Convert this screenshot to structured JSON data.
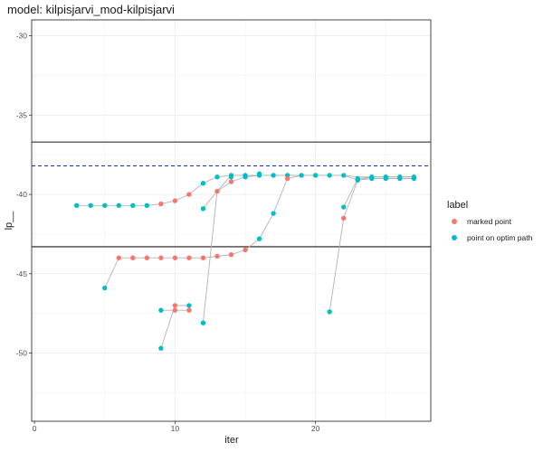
{
  "chart_data": {
    "type": "scatter",
    "title": "model: kilpisjarvi_mod-kilpisjarvi",
    "xlabel": "iter",
    "ylabel": "lp__",
    "xlim": [
      -0.2,
      28.2
    ],
    "ylim": [
      -54.3,
      -29.0
    ],
    "x_ticks": [
      0,
      10,
      20
    ],
    "y_ticks": [
      -30,
      -35,
      -40,
      -45,
      -50
    ],
    "grid": true,
    "legend_position": "right",
    "legend_title": "label",
    "legend": [
      {
        "label": "marked point",
        "color": "#F8766D"
      },
      {
        "label": "point on optim path",
        "color": "#00BFC4"
      }
    ],
    "hlines": [
      {
        "y": -36.7,
        "style": "solid",
        "color": "#1a1a1a"
      },
      {
        "y": -43.3,
        "style": "solid",
        "color": "#1a1a1a"
      },
      {
        "y": -38.2,
        "style": "dashed",
        "color": "#1a2ad6"
      }
    ],
    "paths": [
      [
        [
          3,
          -40.7
        ],
        [
          4,
          -40.7
        ],
        [
          5,
          -40.7
        ],
        [
          6,
          -40.7
        ],
        [
          7,
          -40.7
        ],
        [
          8,
          -40.7
        ],
        [
          9,
          -40.6
        ],
        [
          10,
          -40.4
        ],
        [
          11,
          -40.0
        ],
        [
          12,
          -39.3
        ],
        [
          13,
          -38.9
        ],
        [
          14,
          -38.8
        ],
        [
          15,
          -38.8
        ],
        [
          16,
          -38.8
        ],
        [
          17,
          -38.8
        ],
        [
          18,
          -38.8
        ],
        [
          19,
          -38.8
        ],
        [
          20,
          -38.8
        ],
        [
          21,
          -38.8
        ],
        [
          22,
          -38.8
        ],
        [
          23,
          -39.1
        ],
        [
          24,
          -39.0
        ],
        [
          25,
          -39.0
        ],
        [
          26,
          -39.0
        ],
        [
          27,
          -39.0
        ]
      ],
      [
        [
          5,
          -45.9
        ],
        [
          6,
          -44.0
        ],
        [
          7,
          -44.0
        ],
        [
          8,
          -44.0
        ],
        [
          9,
          -44.0
        ],
        [
          10,
          -44.0
        ],
        [
          11,
          -44.0
        ],
        [
          12,
          -44.0
        ],
        [
          13,
          -43.9
        ],
        [
          14,
          -43.8
        ],
        [
          15,
          -43.5
        ],
        [
          16,
          -42.8
        ],
        [
          17,
          -41.2
        ],
        [
          18,
          -39.0
        ],
        [
          19,
          -38.8
        ],
        [
          20,
          -38.8
        ],
        [
          21,
          -38.8
        ],
        [
          22,
          -38.8
        ],
        [
          23,
          -38.9
        ],
        [
          24,
          -38.9
        ],
        [
          25,
          -38.9
        ],
        [
          26,
          -38.9
        ],
        [
          27,
          -38.9
        ]
      ],
      [
        [
          12,
          -40.9
        ],
        [
          13,
          -39.8
        ],
        [
          14,
          -39.2
        ],
        [
          15,
          -38.9
        ],
        [
          16,
          -38.8
        ],
        [
          17,
          -38.8
        ]
      ],
      [
        [
          12,
          -48.1
        ],
        [
          13,
          -39.8
        ],
        [
          14,
          -38.8
        ],
        [
          15,
          -38.8
        ],
        [
          16,
          -38.8
        ],
        [
          17,
          -38.8
        ]
      ],
      [
        [
          9,
          -47.3
        ],
        [
          10,
          -47.3
        ],
        [
          11,
          -47.3
        ]
      ],
      [
        [
          9,
          -49.7
        ],
        [
          10,
          -47.0
        ],
        [
          11,
          -47.0
        ]
      ],
      [
        [
          21,
          -47.4
        ],
        [
          22,
          -41.5
        ],
        [
          23,
          -39.1
        ],
        [
          24,
          -38.9
        ],
        [
          25,
          -38.9
        ],
        [
          26,
          -38.9
        ],
        [
          27,
          -38.9
        ]
      ],
      [
        [
          22,
          -40.8
        ],
        [
          23,
          -39.0
        ],
        [
          24,
          -38.9
        ],
        [
          25,
          -38.9
        ],
        [
          26,
          -38.9
        ],
        [
          27,
          -38.9
        ]
      ]
    ],
    "marked_points": [
      [
        6,
        -44.0
      ],
      [
        9,
        -40.6
      ],
      [
        10,
        -40.4
      ],
      [
        11,
        -40.0
      ],
      [
        13,
        -39.8
      ],
      [
        14,
        -39.2
      ],
      [
        18,
        -39.0
      ],
      [
        22,
        -41.5
      ],
      [
        10,
        -47.0
      ],
      [
        10,
        -47.3
      ],
      [
        11,
        -47.3
      ],
      [
        7,
        -44.0
      ],
      [
        8,
        -44.0
      ],
      [
        9,
        -44.0
      ],
      [
        10,
        -44.0
      ],
      [
        11,
        -44.0
      ],
      [
        12,
        -44.0
      ],
      [
        13,
        -43.9
      ],
      [
        14,
        -43.8
      ],
      [
        15,
        -43.5
      ]
    ],
    "optim_points": [
      [
        3,
        -40.7
      ],
      [
        4,
        -40.7
      ],
      [
        5,
        -40.7
      ],
      [
        6,
        -40.7
      ],
      [
        7,
        -40.7
      ],
      [
        8,
        -40.7
      ],
      [
        12,
        -39.3
      ],
      [
        13,
        -38.9
      ],
      [
        14,
        -38.8
      ],
      [
        15,
        -38.8
      ],
      [
        16,
        -38.8
      ],
      [
        17,
        -38.8
      ],
      [
        18,
        -38.8
      ],
      [
        19,
        -38.8
      ],
      [
        20,
        -38.8
      ],
      [
        21,
        -38.8
      ],
      [
        22,
        -38.8
      ],
      [
        23,
        -39.1
      ],
      [
        24,
        -38.9
      ],
      [
        25,
        -38.9
      ],
      [
        26,
        -38.9
      ],
      [
        27,
        -38.9
      ],
      [
        23,
        -39.0
      ],
      [
        24,
        -39.0
      ],
      [
        25,
        -39.0
      ],
      [
        26,
        -39.0
      ],
      [
        27,
        -39.0
      ],
      [
        5,
        -45.9
      ],
      [
        16,
        -42.8
      ],
      [
        17,
        -41.2
      ],
      [
        12,
        -40.9
      ],
      [
        12,
        -48.1
      ],
      [
        9,
        -47.3
      ],
      [
        11,
        -47.0
      ],
      [
        9,
        -49.7
      ],
      [
        21,
        -47.4
      ],
      [
        22,
        -40.8
      ],
      [
        15,
        -38.9
      ],
      [
        16,
        -38.7
      ],
      [
        14,
        -38.9
      ]
    ]
  }
}
